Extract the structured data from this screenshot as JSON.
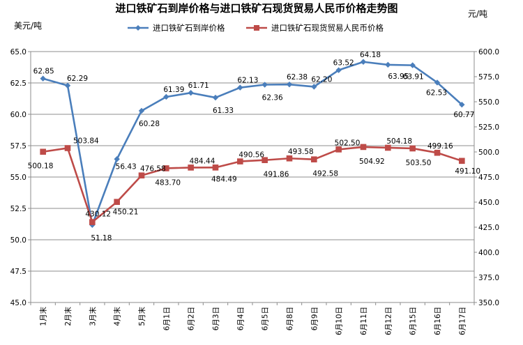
{
  "chart_data": {
    "type": "line",
    "title": "进口铁矿石到岸价格与进口铁矿石现货贸易人民币价格走势图",
    "left_unit": "美元/吨",
    "right_unit": "元/吨",
    "categories": [
      "1月末",
      "2月末",
      "3月末",
      "4月末",
      "5月末",
      "6月1日",
      "6月2日",
      "6月3日",
      "6月4日",
      "6月5日",
      "6月8日",
      "6月9日",
      "6月10日",
      "6月11日",
      "6月12日",
      "6月15日",
      "6月16日",
      "6月17日"
    ],
    "left_axis": {
      "min": 45,
      "max": 65,
      "step": 2.5,
      "ticks": [
        "45.0",
        "47.5",
        "50.0",
        "52.5",
        "55.0",
        "57.5",
        "60.0",
        "62.5",
        "65.0"
      ]
    },
    "right_axis": {
      "min": 350,
      "max": 600,
      "step": 25,
      "ticks": [
        "350.0",
        "375.0",
        "400.0",
        "425.0",
        "450.0",
        "475.0",
        "500.0",
        "525.0",
        "550.0",
        "575.0",
        "600.0"
      ]
    },
    "grid": "horizontal",
    "legend_position": "top",
    "series": [
      {
        "name": "进口铁矿石到岸价格",
        "axis": "left",
        "color": "#4a7ebb",
        "marker": "diamond",
        "values": [
          62.85,
          62.29,
          51.18,
          56.43,
          60.28,
          61.39,
          61.71,
          61.33,
          62.13,
          62.36,
          62.38,
          62.2,
          63.52,
          64.18,
          63.95,
          63.91,
          62.53,
          60.77
        ],
        "labels": [
          "62.85",
          "62.29",
          "51.18",
          "56.43",
          "60.28",
          "61.39",
          "61.71",
          "61.33",
          "62.13",
          "62.36",
          "62.38",
          "62.20",
          "63.52",
          "64.18",
          "63.95",
          "63.91",
          "62.53",
          "60.77"
        ]
      },
      {
        "name": "进口铁矿石现货贸易人民币价格",
        "axis": "right",
        "color": "#be4b48",
        "marker": "square",
        "values": [
          500.18,
          503.84,
          430.12,
          450.21,
          476.58,
          483.7,
          484.44,
          484.49,
          490.56,
          491.86,
          493.58,
          492.58,
          502.5,
          504.92,
          504.18,
          503.5,
          499.16,
          491.1
        ],
        "labels": [
          "500.18",
          "503.84",
          "430.12",
          "450.21",
          "476.58",
          "483.70",
          "484.44",
          "484.49",
          "490.56",
          "491.86",
          "493.58",
          "492.58",
          "502.50",
          "504.92",
          "504.18",
          "503.50",
          "499.16",
          "491.10"
        ]
      }
    ]
  }
}
